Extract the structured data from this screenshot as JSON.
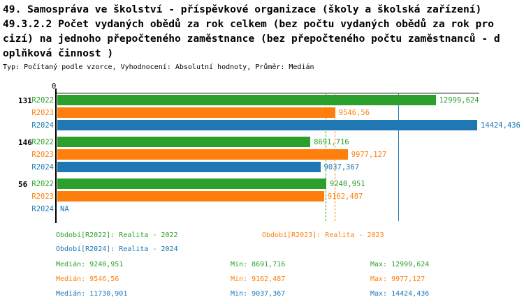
{
  "title": {
    "lines": [
      "49. Samospráva ve školství - příspěvkové organizace (školy a školská zařízení)",
      "49.3.2.2 Počet vydaných obědů za rok celkem (bez počtu vydaných obědů za rok pro",
      "cizí) na jednoho přepočteného zaměstnance (bez přepočteného počtu zaměstnanců - d",
      "oplňková činnost )"
    ],
    "meta": "Typ: Počítaný podle vzorce, Vyhodnocení: Absolutní hodnoty, Průměr: Medián"
  },
  "colors": {
    "r2022": "#2ca02c",
    "r2023": "#ff7f0e",
    "r2024": "#1f77b4",
    "axis": "#000000",
    "background": "#ffffff"
  },
  "chart_data": {
    "type": "bar",
    "orientation": "horizontal",
    "axis_origin_label": "0",
    "x_min": 0,
    "x_max": 14520,
    "grid": false,
    "na_label": "NA",
    "series_names": [
      "R2022",
      "R2023",
      "R2024"
    ],
    "groups": [
      {
        "label": "131",
        "bars": [
          {
            "series": "R2022",
            "value": 12999.624,
            "display": "12999,624"
          },
          {
            "series": "R2023",
            "value": 9546.56,
            "display": "9546,56"
          },
          {
            "series": "R2024",
            "value": 14424.436,
            "display": "14424,436"
          }
        ]
      },
      {
        "label": "146",
        "bars": [
          {
            "series": "R2022",
            "value": 8691.716,
            "display": "8691,716"
          },
          {
            "series": "R2023",
            "value": 9977.127,
            "display": "9977,127"
          },
          {
            "series": "R2024",
            "value": 9037.367,
            "display": "9037,367"
          }
        ]
      },
      {
        "label": "56",
        "bars": [
          {
            "series": "R2022",
            "value": 9240.951,
            "display": "9240,951"
          },
          {
            "series": "R2023",
            "value": 9162.487,
            "display": "9162,487"
          },
          {
            "series": "R2024",
            "value": null,
            "display": "NA"
          }
        ]
      }
    ],
    "median_lines": [
      {
        "series": "R2022",
        "value": 9240.951,
        "style": "dashed"
      },
      {
        "series": "R2023",
        "value": 9546.56,
        "style": "dashed"
      },
      {
        "series": "R2024",
        "value": 11730.901,
        "style": "solid"
      }
    ]
  },
  "legend": {
    "entries": [
      {
        "series": "R2022",
        "text": "Období[R2022]: Realita - 2022"
      },
      {
        "series": "R2023",
        "text": "Období[R2023]: Realita - 2023"
      },
      {
        "series": "R2024",
        "text": "Období[R2024]: Realita - 2024"
      }
    ]
  },
  "stats": {
    "rows": [
      {
        "series": "R2022",
        "median": "Medián: 9240,951",
        "min": "Min: 8691,716",
        "max": "Max: 12999,624"
      },
      {
        "series": "R2023",
        "median": "Medián: 9546,56",
        "min": "Min: 9162,487",
        "max": "Max: 9977,127"
      },
      {
        "series": "R2024",
        "median": "Medián: 11730,901",
        "min": "Min: 9037,367",
        "max": "Max: 14424,436"
      }
    ]
  }
}
